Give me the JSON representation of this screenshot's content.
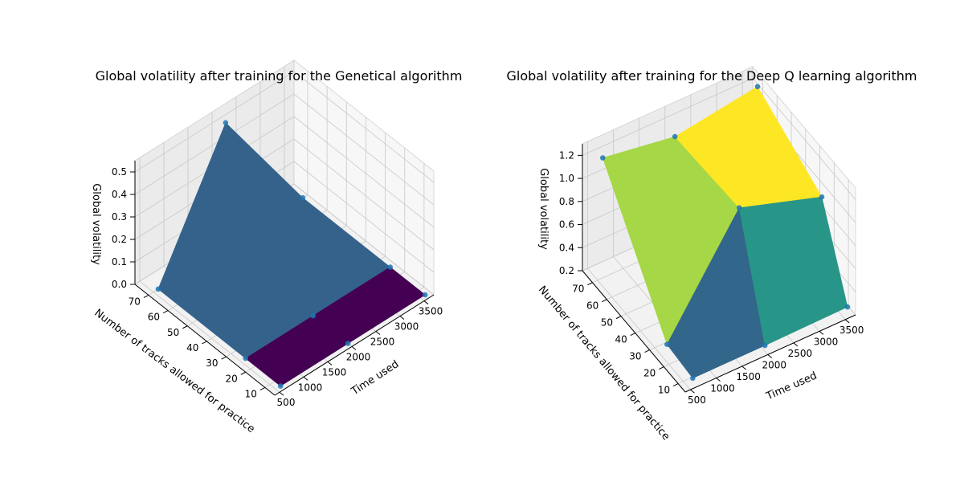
{
  "chart_data": [
    {
      "type": "surface3d",
      "title": "Global volatility after training for the Genetical algorithm",
      "xlabel": "Time used",
      "ylabel": "Number of tracks allowed for practice",
      "zlabel": "Global volatility",
      "x_ticks": [
        "500",
        "1000",
        "1500",
        "2000",
        "2500",
        "3000",
        "3500"
      ],
      "y_ticks": [
        "10",
        "20",
        "30",
        "40",
        "50",
        "60",
        "70"
      ],
      "z_ticks": [
        "0.0",
        "0.1",
        "0.2",
        "0.3",
        "0.4",
        "0.5"
      ],
      "xlim": [
        400,
        3700
      ],
      "ylim": [
        5,
        77
      ],
      "zlim": [
        0,
        0.55
      ],
      "x": [
        600,
        2000,
        3600
      ],
      "y": [
        7,
        25,
        70
      ],
      "z": [
        [
          0.0,
          0.0,
          0.0
        ],
        [
          0.0,
          0.0,
          0.0
        ],
        [
          0.0,
          0.55,
          0.0
        ]
      ],
      "colormap": "viridis",
      "grid": true
    },
    {
      "type": "surface3d",
      "title": "Global volatility after training for the Deep Q learning algorithm",
      "xlabel": "Time used",
      "ylabel": "Number of tracks allowed for practice",
      "zlabel": "Global volatility",
      "x_ticks": [
        "500",
        "1000",
        "1500",
        "2000",
        "2500",
        "3000",
        "3500"
      ],
      "y_ticks": [
        "10",
        "20",
        "30",
        "40",
        "50",
        "60",
        "70"
      ],
      "z_ticks": [
        "0.2",
        "0.4",
        "0.6",
        "0.8",
        "1.0",
        "1.2"
      ],
      "xlim": [
        400,
        3700
      ],
      "ylim": [
        5,
        77
      ],
      "zlim": [
        0.2,
        1.3
      ],
      "x": [
        600,
        2000,
        3600
      ],
      "y": [
        7,
        25,
        70
      ],
      "z": [
        [
          0.25,
          0.25,
          0.26
        ],
        [
          0.28,
          1.18,
          0.95
        ],
        [
          1.24,
          1.14,
          1.25
        ]
      ],
      "colormap": "viridis",
      "grid": true
    }
  ]
}
